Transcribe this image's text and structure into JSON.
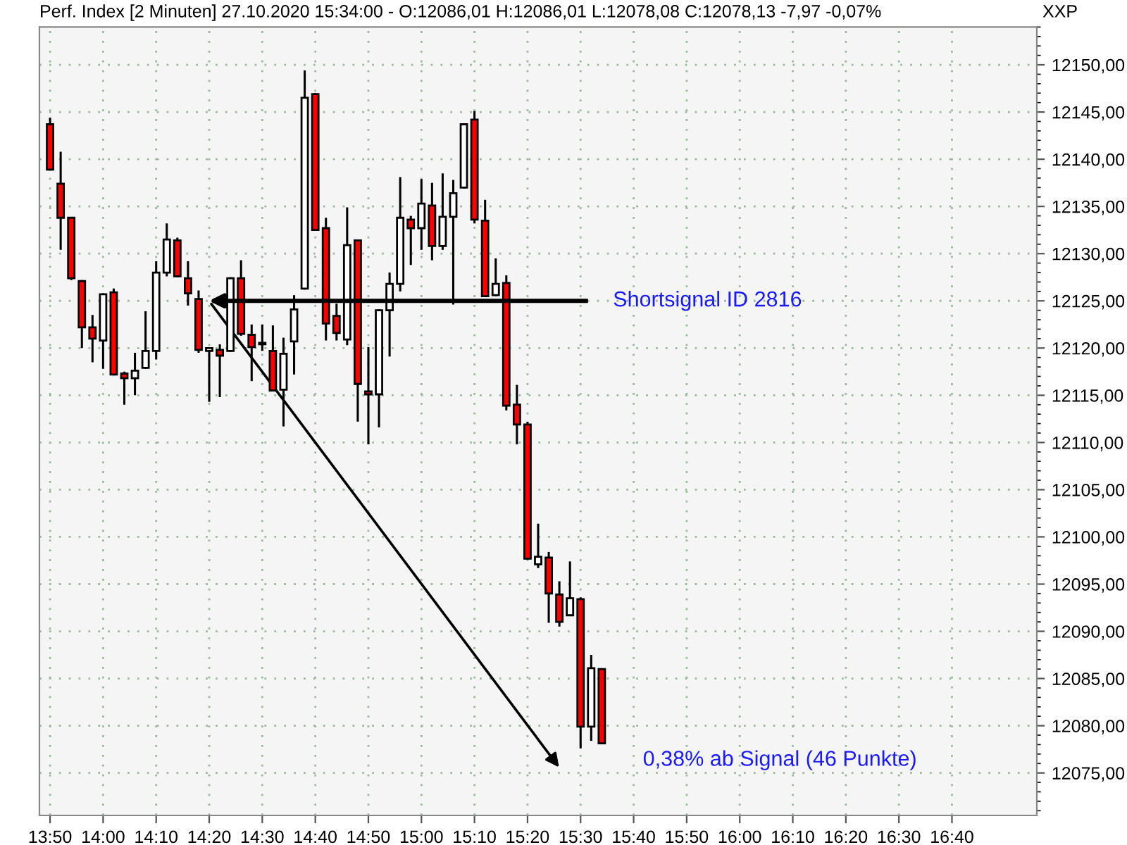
{
  "chart_data": {
    "type": "candlestick",
    "title": "Perf. Index [2 Minuten] 27.10.2020 15:34:00 - O:12086,01 H:12086,01 L:12078,08 C:12078,13 -7,97 -0,07%",
    "x": [
      "2020-10-27T13:50",
      "2020-10-27T13:52",
      "2020-10-27T13:54",
      "2020-10-27T13:56",
      "2020-10-27T13:58",
      "2020-10-27T14:00",
      "2020-10-27T14:02",
      "2020-10-27T14:04",
      "2020-10-27T14:06",
      "2020-10-27T14:08",
      "2020-10-27T14:10",
      "2020-10-27T14:12",
      "2020-10-27T14:14",
      "2020-10-27T14:16",
      "2020-10-27T14:18",
      "2020-10-27T14:20",
      "2020-10-27T14:22",
      "2020-10-27T14:24",
      "2020-10-27T14:26",
      "2020-10-27T14:28",
      "2020-10-27T14:30",
      "2020-10-27T14:32",
      "2020-10-27T14:34",
      "2020-10-27T14:36",
      "2020-10-27T14:38",
      "2020-10-27T14:40",
      "2020-10-27T14:42",
      "2020-10-27T14:44",
      "2020-10-27T14:46",
      "2020-10-27T14:48",
      "2020-10-27T14:50",
      "2020-10-27T14:52",
      "2020-10-27T14:54",
      "2020-10-27T14:56",
      "2020-10-27T14:58",
      "2020-10-27T15:00",
      "2020-10-27T15:02",
      "2020-10-27T15:04",
      "2020-10-27T15:06",
      "2020-10-27T15:08",
      "2020-10-27T15:10",
      "2020-10-27T15:12",
      "2020-10-27T15:14",
      "2020-10-27T15:16",
      "2020-10-27T15:18",
      "2020-10-27T15:20",
      "2020-10-27T15:22",
      "2020-10-27T15:24",
      "2020-10-27T15:26",
      "2020-10-27T15:28",
      "2020-10-27T15:30",
      "2020-10-27T15:32",
      "2020-10-27T15:34"
    ],
    "ohlc": [
      [
        12143.7,
        12144.4,
        12138.8,
        12138.9
      ],
      [
        12137.4,
        12140.8,
        12130.4,
        12133.8
      ],
      [
        12133.8,
        12133.9,
        12127.2,
        12127.4
      ],
      [
        12127.1,
        12127.2,
        12120.0,
        12122.2
      ],
      [
        12122.2,
        12123.5,
        12118.5,
        12121.0
      ],
      [
        12120.8,
        12125.8,
        12117.8,
        12125.7
      ],
      [
        12125.9,
        12126.3,
        12117.1,
        12117.2
      ],
      [
        12117.3,
        12117.5,
        12114.0,
        12116.8
      ],
      [
        12116.8,
        12119.5,
        12115.0,
        12117.6
      ],
      [
        12117.9,
        12123.9,
        12117.8,
        12119.7
      ],
      [
        12119.7,
        12129.2,
        12118.8,
        12128.0
      ],
      [
        12128.0,
        12133.2,
        12127.6,
        12131.5
      ],
      [
        12131.4,
        12131.7,
        12127.5,
        12127.6
      ],
      [
        12127.4,
        12129.2,
        12124.5,
        12125.8
      ],
      [
        12125.2,
        12126.1,
        12119.5,
        12119.8
      ],
      [
        12119.7,
        12120.1,
        12114.3,
        12120.0
      ],
      [
        12119.8,
        12120.4,
        12114.8,
        12119.2
      ],
      [
        12119.7,
        12127.5,
        12119.6,
        12127.4
      ],
      [
        12127.4,
        12129.3,
        12121.3,
        12121.5
      ],
      [
        12121.4,
        12122.5,
        12116.5,
        12120.1
      ],
      [
        12120.4,
        12122.5,
        12119.7,
        12120.4
      ],
      [
        12119.7,
        12122.4,
        12115.4,
        12115.5
      ],
      [
        12115.6,
        12121.1,
        12111.7,
        12119.4
      ],
      [
        12120.7,
        12125.6,
        12117.2,
        12124.1
      ],
      [
        12126.3,
        12149.4,
        12126.2,
        12146.5
      ],
      [
        12146.9,
        12147.0,
        12132.4,
        12132.5
      ],
      [
        12132.7,
        12133.8,
        12120.8,
        12122.6
      ],
      [
        12123.4,
        12124.7,
        12120.8,
        12121.6
      ],
      [
        12120.9,
        12134.9,
        12120.3,
        12130.9
      ],
      [
        12131.4,
        12131.5,
        12112.2,
        12116.2
      ],
      [
        12115.4,
        12120.1,
        12109.8,
        12115.1
      ],
      [
        12115.1,
        12124.1,
        12111.6,
        12124.0
      ],
      [
        12124.0,
        12128.0,
        12119.1,
        12126.8
      ],
      [
        12126.8,
        12138.1,
        12126.0,
        12133.8
      ],
      [
        12133.6,
        12134.0,
        12128.8,
        12132.7
      ],
      [
        12132.7,
        12137.9,
        12130.4,
        12135.3
      ],
      [
        12135.1,
        12137.5,
        12129.3,
        12130.8
      ],
      [
        12130.8,
        12138.5,
        12130.4,
        12133.9
      ],
      [
        12133.9,
        12137.8,
        12124.6,
        12136.4
      ],
      [
        12137.0,
        12143.8,
        12136.9,
        12143.7
      ],
      [
        12144.2,
        12145.1,
        12133.2,
        12133.6
      ],
      [
        12133.5,
        12135.7,
        12125.4,
        12125.5
      ],
      [
        12125.6,
        12129.5,
        12125.5,
        12126.8
      ],
      [
        12126.9,
        12127.7,
        12113.4,
        12113.9
      ],
      [
        12114.0,
        12116.1,
        12109.8,
        12111.9
      ],
      [
        12111.9,
        12112.2,
        12097.6,
        12097.7
      ],
      [
        12097.1,
        12101.4,
        12096.7,
        12097.9
      ],
      [
        12097.8,
        12098.4,
        12090.9,
        12094.0
      ],
      [
        12093.9,
        12095.3,
        12090.5,
        12091.0
      ],
      [
        12091.7,
        12097.4,
        12091.6,
        12093.5
      ],
      [
        12093.4,
        12093.6,
        12077.6,
        12079.9
      ],
      [
        12079.9,
        12087.5,
        12078.4,
        12086.1
      ],
      [
        12086.01,
        12086.01,
        12078.08,
        12078.13
      ]
    ],
    "xlim": [
      "2020-10-27T13:48",
      "2020-10-27T16:56"
    ],
    "xticks": [
      {
        "value": "2020-10-27T13:50",
        "label": "13:50"
      },
      {
        "value": "2020-10-27T14:00",
        "label": "14:00"
      },
      {
        "value": "2020-10-27T14:10",
        "label": "14:10"
      },
      {
        "value": "2020-10-27T14:20",
        "label": "14:20"
      },
      {
        "value": "2020-10-27T14:30",
        "label": "14:30"
      },
      {
        "value": "2020-10-27T14:40",
        "label": "14:40"
      },
      {
        "value": "2020-10-27T14:50",
        "label": "14:50"
      },
      {
        "value": "2020-10-27T15:00",
        "label": "15:00"
      },
      {
        "value": "2020-10-27T15:10",
        "label": "15:10"
      },
      {
        "value": "2020-10-27T15:20",
        "label": "15:20"
      },
      {
        "value": "2020-10-27T15:30",
        "label": "15:30"
      },
      {
        "value": "2020-10-27T15:40",
        "label": "15:40"
      },
      {
        "value": "2020-10-27T15:50",
        "label": "15:50"
      },
      {
        "value": "2020-10-27T16:00",
        "label": "16:00"
      },
      {
        "value": "2020-10-27T16:10",
        "label": "16:10"
      },
      {
        "value": "2020-10-27T16:20",
        "label": "16:20"
      },
      {
        "value": "2020-10-27T16:30",
        "label": "16:30"
      },
      {
        "value": "2020-10-27T16:40",
        "label": "16:40"
      }
    ],
    "ylim": [
      12070.5,
      12154
    ],
    "yticks": [
      {
        "value": 12075,
        "label": "12075,00"
      },
      {
        "value": 12080,
        "label": "12080,00"
      },
      {
        "value": 12085,
        "label": "12085,00"
      },
      {
        "value": 12090,
        "label": "12090,00"
      },
      {
        "value": 12095,
        "label": "12095,00"
      },
      {
        "value": 12100,
        "label": "12100,00"
      },
      {
        "value": 12105,
        "label": "12105,00"
      },
      {
        "value": 12110,
        "label": "12110,00"
      },
      {
        "value": 12115,
        "label": "12115,00"
      },
      {
        "value": 12120,
        "label": "12120,00"
      },
      {
        "value": 12125,
        "label": "12125,00"
      },
      {
        "value": 12130,
        "label": "12130,00"
      },
      {
        "value": 12135,
        "label": "12135,00"
      },
      {
        "value": 12140,
        "label": "12140,00"
      },
      {
        "value": 12145,
        "label": "12145,00"
      },
      {
        "value": 12150,
        "label": "12150,00"
      }
    ],
    "grid": true,
    "ref_lines": [
      {
        "axis": "y",
        "value": 12125,
        "label": "Shortsignal ID 2816",
        "color": "#000000"
      }
    ],
    "annotations": [
      "0,38% ab Signal (46 Punkte)",
      "XXP"
    ]
  }
}
